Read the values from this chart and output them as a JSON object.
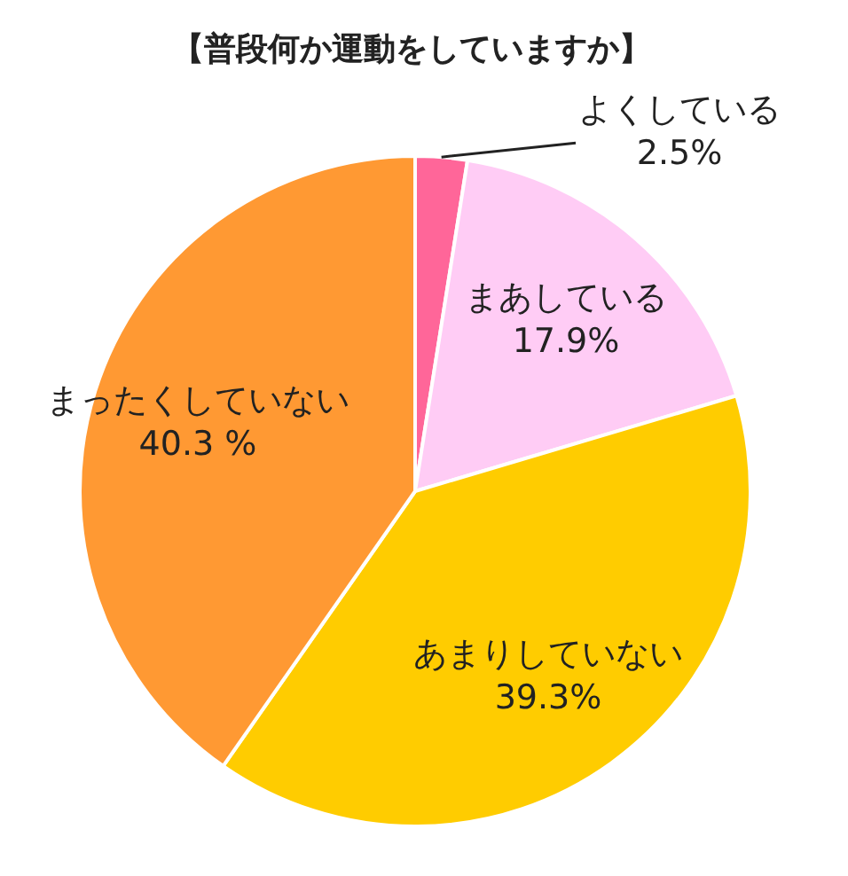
{
  "chart_data": {
    "type": "pie",
    "title": "【普段何か運動をしていますか】",
    "categories": [
      "よくしている",
      "まあしている",
      "あまりしていない",
      "まったくしていない"
    ],
    "values": [
      2.5,
      17.9,
      39.3,
      40.3
    ],
    "colors": [
      "#ff6699",
      "#ffccf5",
      "#ffcc00",
      "#ff9933"
    ],
    "value_labels": [
      "2.5%",
      "17.9%",
      "39.3%",
      "40.3 %"
    ]
  }
}
